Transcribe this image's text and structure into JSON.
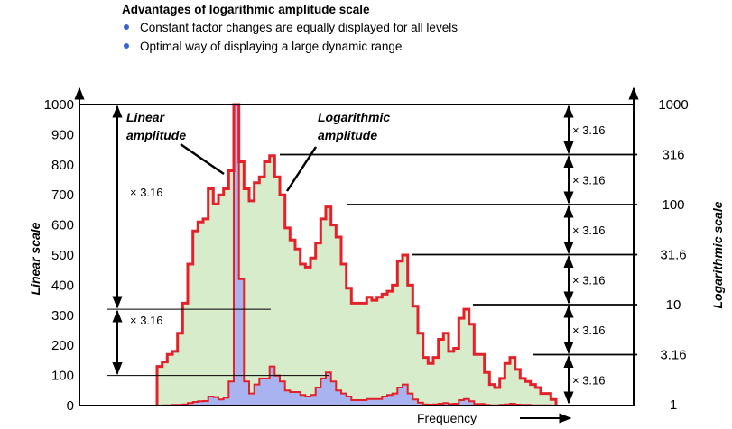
{
  "title": "Advantages of logarithmic amplitude scale",
  "bullets": [
    "Constant factor changes are equally displayed for all levels",
    "Optimal way of displaying a large dynamic range"
  ],
  "colors": {
    "log_fill": "#d6ecca",
    "log_line": "#e4202a",
    "lin_fill": "#a9b3ef",
    "bullet": "#3a62d6"
  },
  "chart_data": {
    "type": "area",
    "xlabel": "Frequency",
    "ylabel_left": "Linear scale",
    "ylabel_right": "Logarithmic scale",
    "left_ticks": [
      "1000",
      "900",
      "800",
      "700",
      "600",
      "500",
      "400",
      "300",
      "200",
      "100",
      "0"
    ],
    "left_range": [
      0,
      1000
    ],
    "right_ticks": [
      "1000",
      "316",
      "100",
      "31.6",
      "10",
      "3.16",
      "1"
    ],
    "right_range": [
      1,
      1000
    ],
    "factor_label": "× 3.16",
    "series": [
      {
        "name": "Logarithmic amplitude",
        "values": [
          130,
          145,
          170,
          180,
          240,
          340,
          470,
          580,
          610,
          620,
          720,
          670,
          700,
          720,
          780,
          1000,
          810,
          720,
          680,
          740,
          760,
          810,
          830,
          760,
          700,
          590,
          550,
          520,
          470,
          460,
          490,
          540,
          620,
          660,
          600,
          560,
          470,
          390,
          340,
          340,
          340,
          360,
          350,
          360,
          370,
          380,
          400,
          480,
          500,
          400,
          330,
          240,
          160,
          140,
          160,
          220,
          240,
          180,
          190,
          290,
          320,
          270,
          170,
          170,
          110,
          70,
          60,
          90,
          140,
          160,
          120,
          90,
          80,
          70,
          60,
          40,
          40,
          20
        ]
      },
      {
        "name": "Linear amplitude",
        "values": [
          0,
          1,
          1,
          2,
          2,
          4,
          8,
          12,
          14,
          15,
          30,
          28,
          20,
          26,
          80,
          1000,
          420,
          80,
          40,
          70,
          90,
          90,
          130,
          100,
          80,
          50,
          45,
          45,
          35,
          30,
          35,
          60,
          90,
          110,
          80,
          50,
          40,
          30,
          18,
          18,
          18,
          22,
          22,
          22,
          30,
          35,
          40,
          60,
          70,
          40,
          20,
          10,
          4,
          3,
          4,
          6,
          8,
          5,
          6,
          18,
          22,
          14,
          5,
          5,
          2,
          1,
          1,
          2,
          4,
          6,
          3,
          2,
          2,
          1,
          1,
          1,
          1,
          0
        ]
      }
    ],
    "annotations": {
      "linear_amplitude": [
        "Linear",
        "amplitude"
      ],
      "log_amplitude": [
        "Logarithmic",
        "amplitude"
      ]
    }
  }
}
